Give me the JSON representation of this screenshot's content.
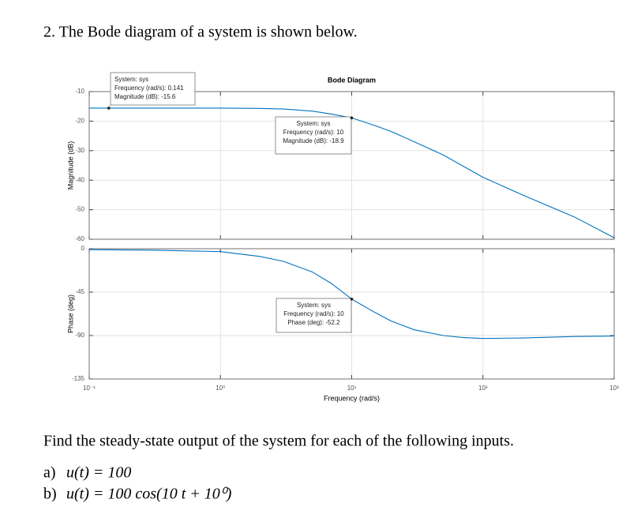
{
  "question": {
    "heading": "2. The Bode diagram of a system is shown below.",
    "prompt": "Find the steady-state output of the system for each of the following inputs.",
    "items": [
      {
        "label": "a)",
        "text": "u(t) = 100"
      },
      {
        "label": "b)",
        "text": "u(t) = 100 cos(10 t + 10⁰)"
      }
    ]
  },
  "chart_data": [
    {
      "type": "line",
      "title": "Bode Diagram",
      "y_label": "Magnitude (dB)",
      "xscale": "log",
      "grid": true,
      "xlim": [
        0.1,
        1000
      ],
      "xticks": [
        0.1,
        1,
        10,
        100,
        1000
      ],
      "ylim": [
        -60,
        -10
      ],
      "yticks": [
        -10,
        -20,
        -30,
        -40,
        -50,
        -60
      ],
      "x": [
        0.1,
        0.141,
        0.3,
        1,
        2,
        3,
        5,
        7,
        10,
        15,
        20,
        30,
        50,
        100,
        200,
        500,
        1000
      ],
      "series": [
        {
          "name": "sys",
          "color": "#0072bd",
          "values": [
            -15.6,
            -15.6,
            -15.6,
            -15.6,
            -15.7,
            -15.9,
            -16.6,
            -17.6,
            -18.9,
            -21.5,
            -23.5,
            -27,
            -31.5,
            -39,
            -45,
            -52.5,
            -59.5
          ]
        }
      ],
      "annotations": [
        [
          "System: sys",
          "Frequency (rad/s): 0.141",
          "Magnitude (dB): -15.6"
        ],
        [
          "System: sys",
          "Frequency (rad/s): 10",
          "Magnitude (dB): -18.9"
        ]
      ]
    },
    {
      "type": "line",
      "x_label": "Frequency (rad/s)",
      "y_label": "Phase (deg)",
      "xscale": "log",
      "grid": true,
      "xlim": [
        0.1,
        1000
      ],
      "xticks": [
        {
          "value": 0.1,
          "label": "10⁻¹"
        },
        {
          "value": 1,
          "label": "10⁰"
        },
        {
          "value": 10,
          "label": "10¹"
        },
        {
          "value": 100,
          "label": "10²"
        },
        {
          "value": 1000,
          "label": "10³"
        }
      ],
      "ylim": [
        -135,
        0
      ],
      "yticks": [
        0,
        -45,
        -90,
        -135
      ],
      "x": [
        0.1,
        0.3,
        1,
        2,
        3,
        5,
        7,
        10,
        15,
        20,
        30,
        50,
        70,
        100,
        200,
        500,
        1000
      ],
      "series": [
        {
          "name": "sys",
          "color": "#0072bd",
          "values": [
            -1,
            -1.5,
            -3,
            -8,
            -13,
            -24,
            -36,
            -52.2,
            -66,
            -75,
            -84,
            -90,
            -92,
            -93,
            -92.5,
            -91,
            -90.5
          ]
        }
      ],
      "annotations": [
        [
          "System: sys",
          "Frequency (rad/s): 10",
          "Phase (deg): -52.2"
        ]
      ]
    }
  ]
}
